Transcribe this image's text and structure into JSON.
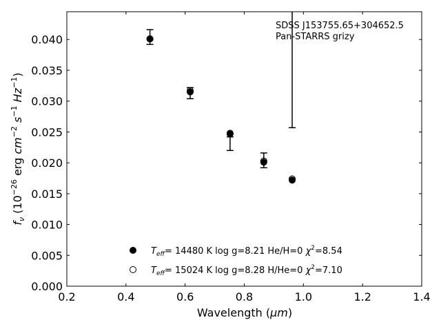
{
  "chart_data": {
    "type": "scatter",
    "xlabel_main": "Wavelength (",
    "xlabel_unit": "μm",
    "xlabel_end": ")",
    "ylabel_fnu": "f",
    "ylabel_nu": "ν",
    "ylabel_open": " (10",
    "ylabel_exp": "−26",
    "ylabel_rest": " erg ",
    "ylabel_cm": "cm",
    "ylabel_cm_exp": "−2",
    "ylabel_s": "s",
    "ylabel_s_exp": "−1",
    "ylabel_hz": "Hz",
    "ylabel_hz_exp": "−1",
    "ylabel_close": ")",
    "xlim": [
      0.2,
      1.4
    ],
    "ylim": [
      0.0,
      0.0445
    ],
    "xticks": [
      "0.2",
      "0.4",
      "0.6",
      "0.8",
      "1.0",
      "1.2",
      "1.4"
    ],
    "yticks": [
      "0.000",
      "0.005",
      "0.010",
      "0.015",
      "0.020",
      "0.025",
      "0.030",
      "0.035",
      "0.040"
    ],
    "annotation_line1": "SDSS J153755.65+304652.5",
    "annotation_line2": "Pan-STARRS grizy",
    "observed": {
      "x": [
        0.481,
        0.617,
        0.752,
        0.866,
        0.962
      ],
      "y": [
        0.0404,
        0.0313,
        0.0231,
        0.0204,
        0.0415
      ],
      "yerr": [
        0.0012,
        0.0009,
        0.0011,
        0.0012,
        0.0158
      ]
    },
    "series": [
      {
        "marker": "filled",
        "x": [
          0.481,
          0.617,
          0.752,
          0.866,
          0.962
        ],
        "y": [
          0.0401,
          0.0315,
          0.0247,
          0.0201,
          0.0172
        ],
        "legend": {
          "t": "T",
          "eff": "eff",
          "rest": "= 14480 K  log g=8.21  He/H=0  ",
          "chi": "χ",
          "chi_exp": "2",
          "chi_val": "=8.54"
        }
      },
      {
        "marker": "open",
        "x": [
          0.481,
          0.617,
          0.752,
          0.866,
          0.962
        ],
        "y": [
          0.0401,
          0.0317,
          0.0248,
          0.0203,
          0.0174
        ],
        "legend": {
          "t": "T",
          "eff": "eff",
          "rest": "= 15024 K  log g=8.28  H/He=0  ",
          "chi": "χ",
          "chi_exp": "2",
          "chi_val": "=7.10"
        }
      }
    ]
  }
}
